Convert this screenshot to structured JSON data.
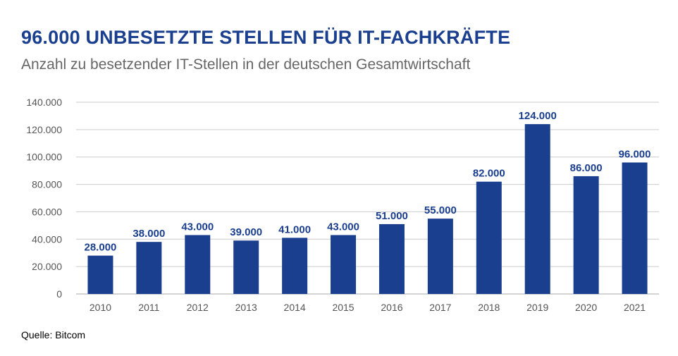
{
  "title": "96.000 UNBESETZTE STELLEN FÜR IT-FACHKRÄFTE",
  "subtitle": "Anzahl zu besetzender IT-Stellen in der deutschen Gesamtwirtschaft",
  "source": "Quelle: Bitcom",
  "colors": {
    "bar": "#1b3f8f",
    "title": "#1b3f8f",
    "grid": "#cccccc"
  },
  "chart_data": {
    "type": "bar",
    "title": "96.000 UNBESETZTE STELLEN FÜR IT-FACHKRÄFTE",
    "subtitle": "Anzahl zu besetzender IT-Stellen in der deutschen Gesamtwirtschaft",
    "xlabel": "",
    "ylabel": "",
    "categories": [
      "2010",
      "2011",
      "2012",
      "2013",
      "2014",
      "2015",
      "2016",
      "2017",
      "2018",
      "2019",
      "2020",
      "2021"
    ],
    "values": [
      28000,
      38000,
      43000,
      39000,
      41000,
      43000,
      51000,
      55000,
      82000,
      124000,
      86000,
      96000
    ],
    "data_labels": [
      "28.000",
      "38.000",
      "43.000",
      "39.000",
      "41.000",
      "43.000",
      "51.000",
      "55.000",
      "82.000",
      "124.000",
      "86.000",
      "96.000"
    ],
    "ylim": [
      0,
      140000
    ],
    "yticks": [
      0,
      20000,
      40000,
      60000,
      80000,
      100000,
      120000,
      140000
    ],
    "ytick_labels": [
      "0",
      "20.000",
      "40.000",
      "60.000",
      "80.000",
      "100.000",
      "120.000",
      "140.000"
    ],
    "grid": true,
    "legend": "none"
  }
}
